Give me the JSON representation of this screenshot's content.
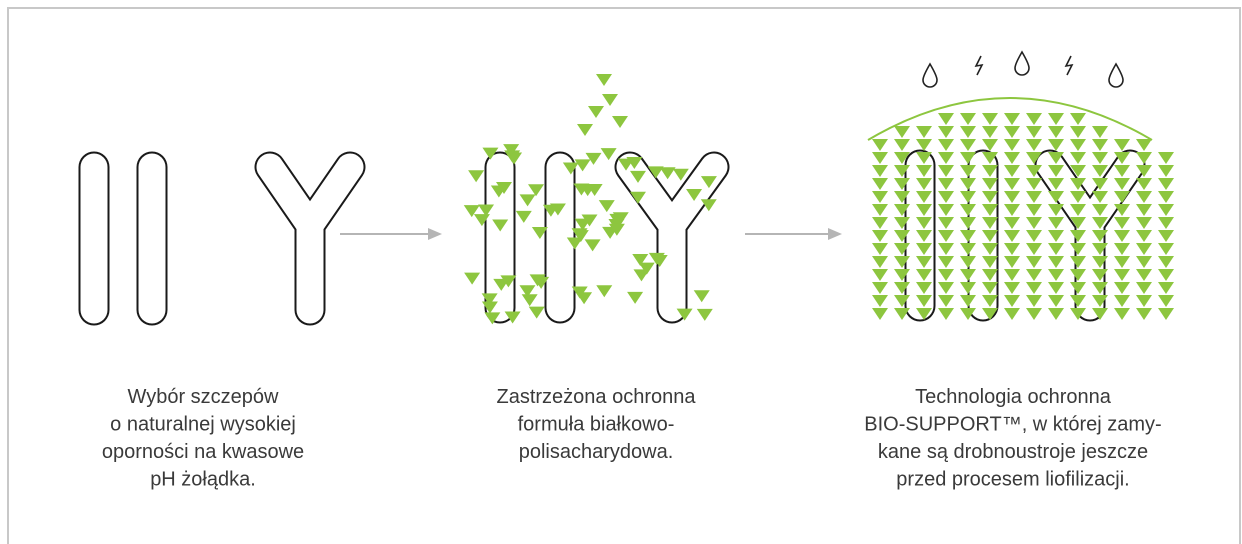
{
  "steps": [
    {
      "caption": [
        "Wybór szczepów",
        "o naturalnej wysokiej",
        "oporności na kwasowe",
        "pH żołądka."
      ]
    },
    {
      "caption": [
        "Zastrzeżona ochronna",
        "formuła białkowo-",
        "polisacharydowa."
      ]
    },
    {
      "caption": [
        "Technologia ochronna",
        "BIO-SUPPORT™, w której zamy-",
        "kane są drobnoustroje jeszcze",
        "przed procesem liofilizacji."
      ]
    }
  ]
}
